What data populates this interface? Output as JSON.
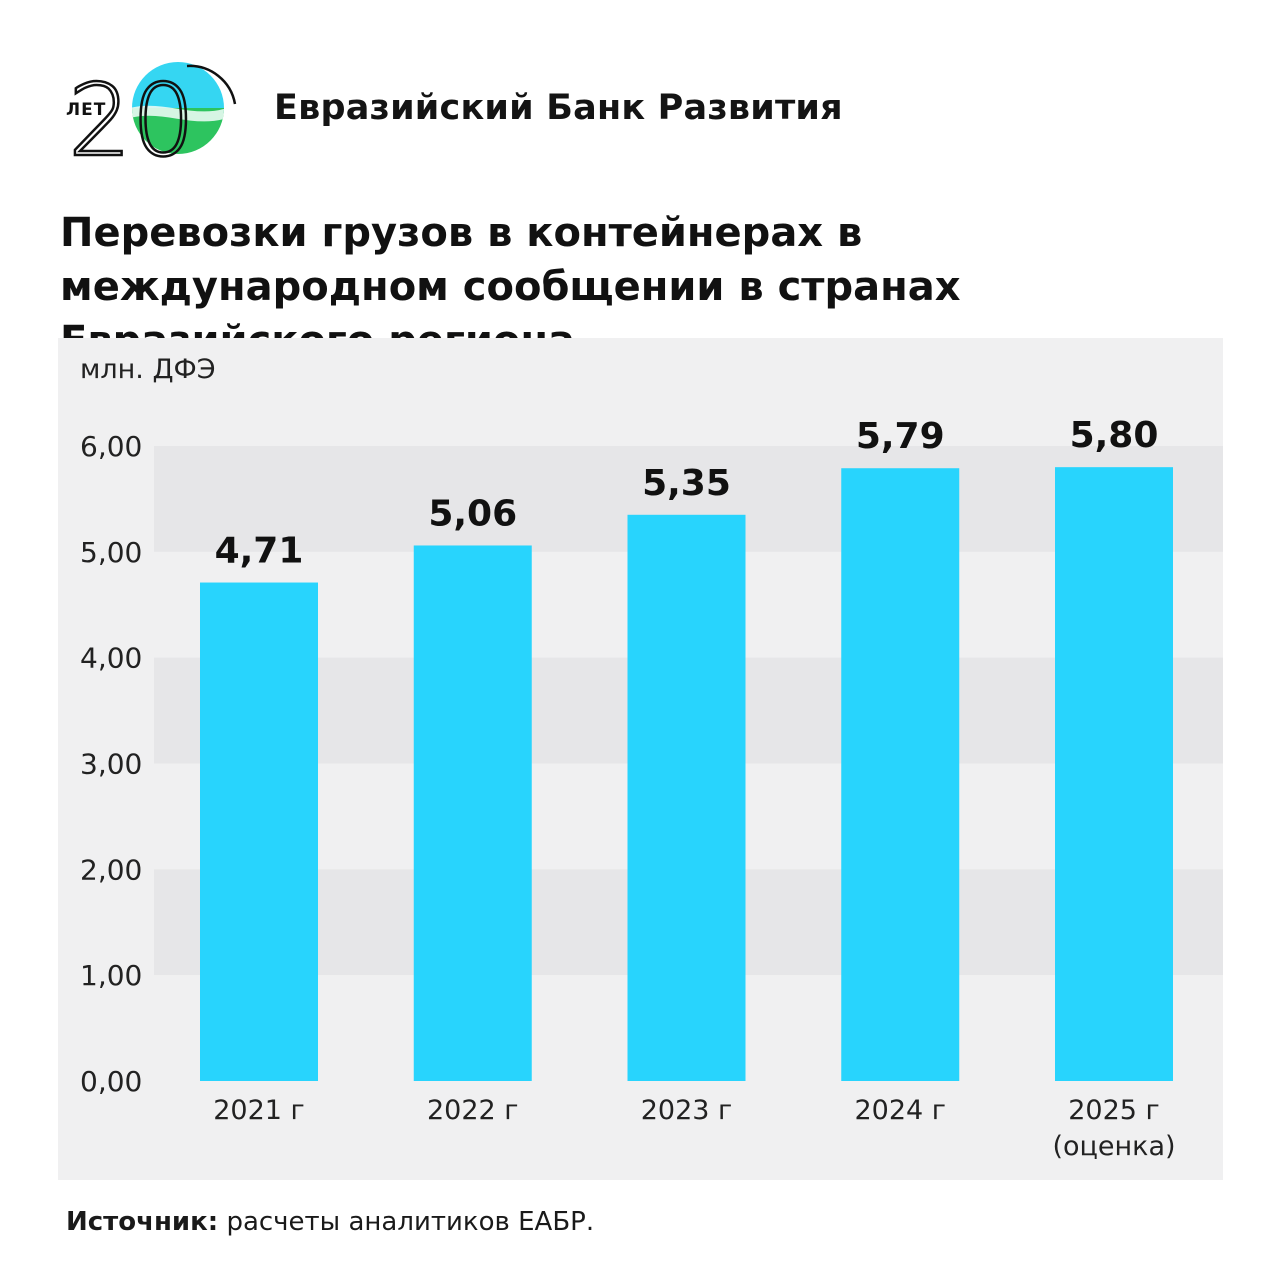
{
  "brand": {
    "logo_word": "ЛЕТ",
    "logo_number": "20",
    "name": "Евразийский Банк Развития"
  },
  "colors": {
    "bar": "#28d4fd",
    "band_light": "#f0f0f1",
    "band_dark": "#e6e6e8",
    "text": "#111111"
  },
  "source": {
    "label": "Источник:",
    "text": " расчеты аналитиков ЕАБР."
  },
  "chart_data": {
    "type": "bar",
    "title": "Перевозки грузов в контейнерах в международном сообщении в странах Евразийского региона",
    "ylabel": "млн. ДФЭ",
    "xlabel": "",
    "ylim": [
      0,
      6
    ],
    "yticks": [
      "0,00",
      "1,00",
      "2,00",
      "3,00",
      "4,00",
      "5,00",
      "6,00"
    ],
    "grid": "alternating horizontal bands",
    "categories": [
      [
        "2021 г"
      ],
      [
        "2022 г"
      ],
      [
        "2023 г"
      ],
      [
        "2024 г"
      ],
      [
        "2025 г",
        "(оценка)"
      ]
    ],
    "values": [
      4.71,
      5.06,
      5.35,
      5.79,
      5.8
    ],
    "value_labels": [
      "4,71",
      "5,06",
      "5,35",
      "5,79",
      "5,80"
    ]
  }
}
